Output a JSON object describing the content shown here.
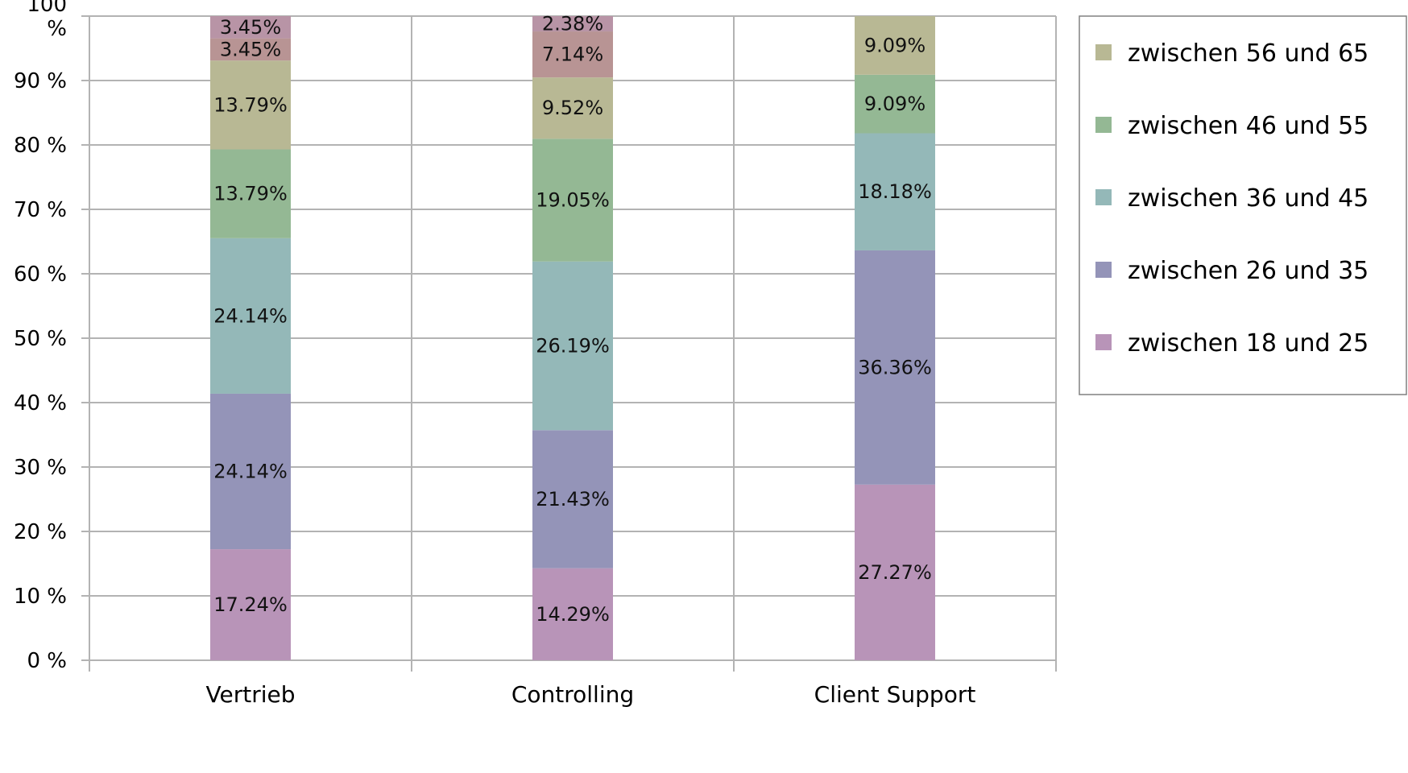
{
  "chart_data": {
    "type": "bar",
    "stacked": true,
    "percent_stacked": true,
    "categories": [
      "Vertrieb",
      "Controlling",
      "Client Support"
    ],
    "series": [
      {
        "name": "zwischen 18 und 25",
        "color": "#b894b8",
        "values": [
          17.24,
          14.29,
          27.27
        ],
        "labels": [
          "17.24%",
          "14.29%",
          "27.27%"
        ]
      },
      {
        "name": "zwischen 26 und 35",
        "color": "#9494b8",
        "values": [
          24.14,
          21.43,
          36.36
        ],
        "labels": [
          "24.14%",
          "21.43%",
          "36.36%"
        ]
      },
      {
        "name": "zwischen 36 und 45",
        "color": "#94b8b8",
        "values": [
          24.14,
          26.19,
          18.18
        ],
        "labels": [
          "24.14%",
          "26.19%",
          "18.18%"
        ]
      },
      {
        "name": "zwischen 46 und 55",
        "color": "#94b894",
        "values": [
          13.79,
          19.05,
          9.09
        ],
        "labels": [
          "13.79%",
          "19.05%",
          "9.09%"
        ]
      },
      {
        "name": "zwischen 56 und 65",
        "color": "#b8b894",
        "values": [
          13.79,
          9.52,
          9.09
        ],
        "labels": [
          "13.79%",
          "9.52%",
          "9.09%"
        ]
      },
      {
        "color": "#b89494",
        "values": [
          3.45,
          7.14,
          0
        ],
        "labels": [
          "3.45%",
          "7.14%",
          ""
        ]
      },
      {
        "color": "#b894a6",
        "values": [
          3.45,
          2.38,
          0
        ],
        "labels": [
          "3.45%",
          "2.38%",
          ""
        ]
      }
    ],
    "y_ticks": [
      "0 %",
      "10 %",
      "20 %",
      "30 %",
      "40 %",
      "50 %",
      "60 %",
      "70 %",
      "80 %",
      "90 %",
      "100 %"
    ],
    "ylim": [
      0,
      100
    ],
    "grid": true,
    "legend_position": "top-right",
    "title": "",
    "xlabel": "",
    "ylabel": ""
  }
}
